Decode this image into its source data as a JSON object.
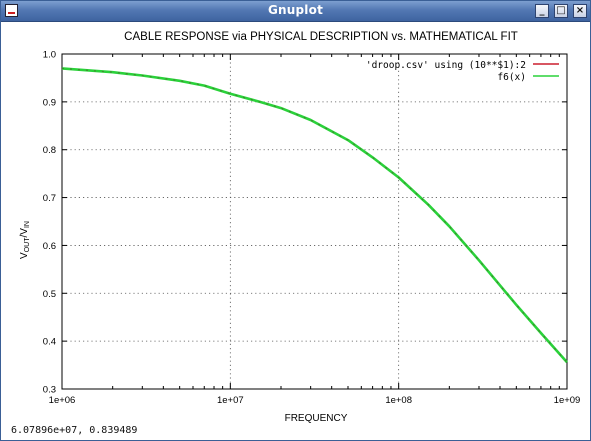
{
  "window": {
    "title": "Gnuplot",
    "buttons": [
      {
        "name": "minimize",
        "glyph": "_"
      },
      {
        "name": "maximize",
        "glyph": "□"
      },
      {
        "name": "close",
        "glyph": "×"
      }
    ],
    "status_text": "6.07896e+07,  0.839489"
  },
  "chart_data": {
    "type": "line",
    "title": "CABLE RESPONSE via PHYSICAL DESCRIPTION vs. MATHEMATICAL FIT",
    "xlabel": "FREQUENCY",
    "ylabel_main": "V",
    "ylabel_sub1": "OUT",
    "ylabel_mid": "/V",
    "ylabel_sub2": "IN",
    "x_scale": "log",
    "xlim": [
      1000000,
      1000000000
    ],
    "ylim": [
      0.3,
      1.0
    ],
    "x_ticks": [
      1000000,
      10000000,
      100000000,
      1000000000
    ],
    "x_tick_labels": [
      "1e+06",
      "1e+07",
      "1e+08",
      "1e+09"
    ],
    "y_ticks": [
      0.3,
      0.4,
      0.5,
      0.6,
      0.7,
      0.8,
      0.9,
      1.0
    ],
    "y_tick_labels": [
      "0.3",
      "0.4",
      "0.5",
      "0.6",
      "0.7",
      "0.8",
      "0.9",
      "1.0"
    ],
    "grid": true,
    "legend_position": "top-right",
    "series": [
      {
        "name": "'droop.csv' using (10**$1):2",
        "color": "#cc1f2e",
        "style": "dashed-dark",
        "x": [
          1000000,
          2000000,
          3000000,
          5000000,
          7000000,
          10000000,
          15000000,
          20000000,
          30000000,
          50000000,
          70000000,
          100000000,
          150000000,
          200000000,
          300000000,
          500000000,
          700000000,
          1000000000
        ],
        "y": [
          0.97,
          0.962,
          0.955,
          0.944,
          0.934,
          0.917,
          0.9,
          0.887,
          0.862,
          0.82,
          0.784,
          0.742,
          0.685,
          0.64,
          0.569,
          0.476,
          0.417,
          0.356
        ]
      },
      {
        "name": "f6(x)",
        "color": "#2ad23a",
        "style": "solid",
        "x": [
          1000000,
          2000000,
          3000000,
          5000000,
          7000000,
          10000000,
          15000000,
          20000000,
          30000000,
          50000000,
          70000000,
          100000000,
          150000000,
          200000000,
          300000000,
          500000000,
          700000000,
          1000000000
        ],
        "y": [
          0.97,
          0.962,
          0.955,
          0.944,
          0.934,
          0.917,
          0.9,
          0.887,
          0.862,
          0.82,
          0.784,
          0.742,
          0.685,
          0.64,
          0.569,
          0.476,
          0.417,
          0.356
        ]
      }
    ]
  }
}
